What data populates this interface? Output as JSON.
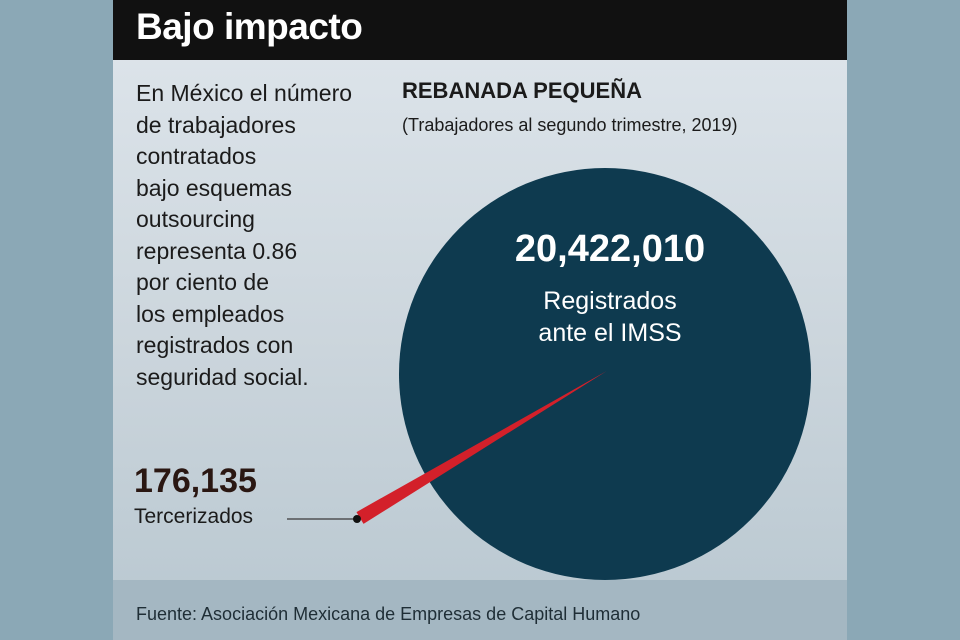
{
  "header": {
    "title": "Bajo impacto"
  },
  "description": "En México el número\nde trabajadores\ncontratados\nbajo esquemas\noutsourcing\nrepresenta 0.86\npor ciento de\nlos empleados\nregistrados con\nseguridad social.",
  "footer": {
    "source": "Fuente: Asociación Mexicana de Empresas de Capital Humano"
  },
  "chart_data": {
    "type": "pie",
    "title": "REBANADA PEQUEÑA",
    "subtitle": "(Trabajadores al segundo trimestre, 2019)",
    "slices": [
      {
        "value_label": "20,422,010",
        "label": "Registrados\nante el IMSS",
        "value": 20422010,
        "color": "#0e3a4f"
      },
      {
        "value_label": "176,135",
        "label": "Tercerizados",
        "value": 176135,
        "color": "#d3202a"
      }
    ]
  }
}
